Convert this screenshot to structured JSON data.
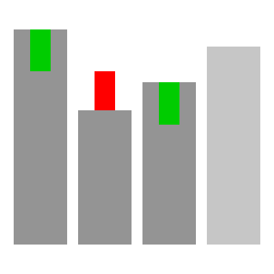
{
  "chart_data": {
    "type": "bar",
    "title": "",
    "xlabel": "",
    "ylabel": "",
    "ylim": [
      0,
      330
    ],
    "grid": false,
    "legend": "none",
    "bars": [
      {
        "value": 314,
        "color": "#949494",
        "change": {
          "direction": "down",
          "amount": 61,
          "color": "#00cc00"
        }
      },
      {
        "value": 196,
        "color": "#949494",
        "change": {
          "direction": "up",
          "amount": 57,
          "color": "#ff0000"
        }
      },
      {
        "value": 237,
        "color": "#949494",
        "change": {
          "direction": "down",
          "amount": 62,
          "color": "#00cc00"
        }
      },
      {
        "value": 289,
        "color": "#c6c6c6",
        "change": null
      }
    ]
  }
}
